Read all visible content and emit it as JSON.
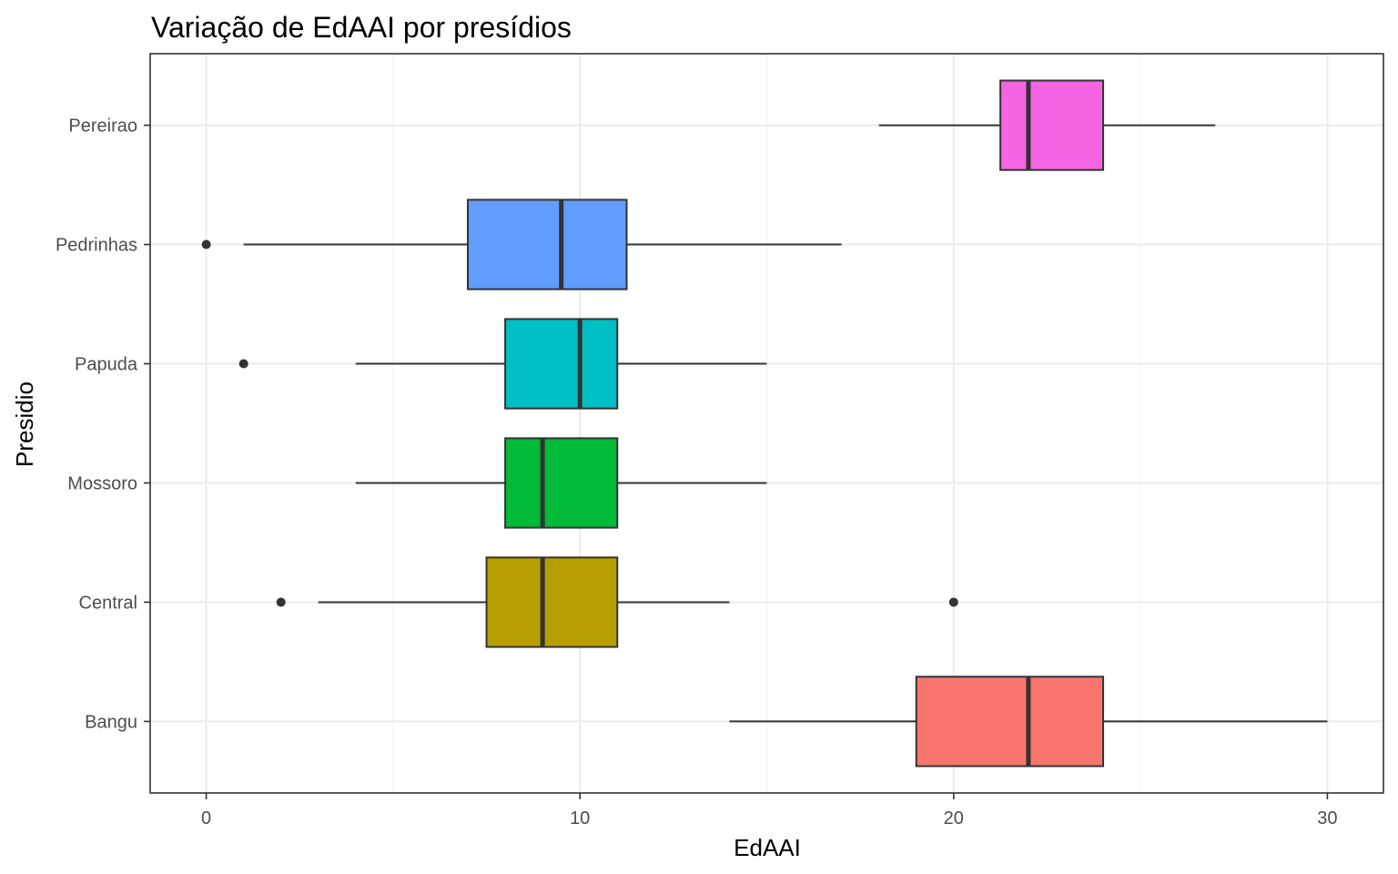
{
  "chart_data": {
    "type": "boxplot",
    "title": "Variação de EdAAI por presídios",
    "xlabel": "EdAAI",
    "ylabel": "Presidio",
    "xlim": [
      -1.5,
      31.5
    ],
    "x_ticks": [
      0,
      10,
      20,
      30
    ],
    "x_tick_labels": [
      "0",
      "10",
      "20",
      "30"
    ],
    "x_minor_ticks": [
      5,
      15,
      25
    ],
    "grid": true,
    "legend": false,
    "series": [
      {
        "category": "Bangu",
        "color": "#F8766D",
        "whisker_low": 14,
        "q1": 19,
        "median": 22,
        "q3": 24,
        "whisker_high": 30,
        "outliers": []
      },
      {
        "category": "Central",
        "color": "#B79F00",
        "whisker_low": 3,
        "q1": 7.5,
        "median": 9,
        "q3": 11,
        "whisker_high": 14,
        "outliers": [
          2,
          20
        ]
      },
      {
        "category": "Mossoro",
        "color": "#00BA38",
        "whisker_low": 4,
        "q1": 8,
        "median": 9,
        "q3": 11,
        "whisker_high": 15,
        "outliers": []
      },
      {
        "category": "Papuda",
        "color": "#00BFC4",
        "whisker_low": 4,
        "q1": 8,
        "median": 10,
        "q3": 11,
        "whisker_high": 15,
        "outliers": [
          1
        ]
      },
      {
        "category": "Pedrinhas",
        "color": "#619CFF",
        "whisker_low": 1,
        "q1": 7,
        "median": 9.5,
        "q3": 11.25,
        "whisker_high": 17,
        "outliers": [
          0
        ]
      },
      {
        "category": "Pereirao",
        "color": "#F564E3",
        "whisker_low": 18,
        "q1": 21.25,
        "median": 22,
        "q3": 24,
        "whisker_high": 27,
        "outliers": []
      }
    ]
  }
}
